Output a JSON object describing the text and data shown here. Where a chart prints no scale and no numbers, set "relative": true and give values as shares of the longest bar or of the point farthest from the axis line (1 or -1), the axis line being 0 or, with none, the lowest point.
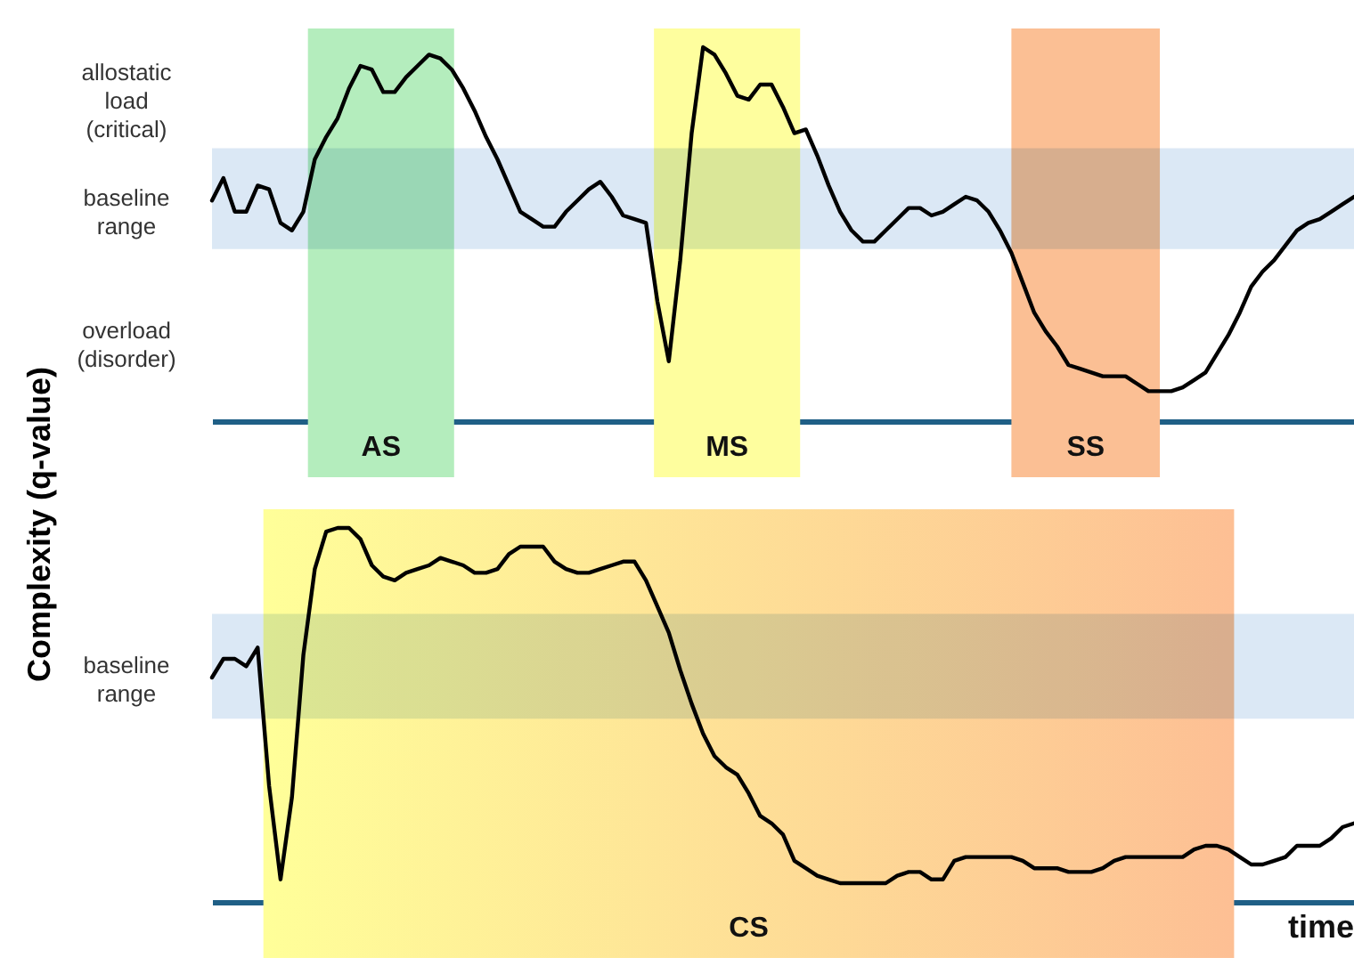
{
  "chart_data": [
    {
      "type": "line",
      "relative": true,
      "ylabel": "Complexity (q-value)",
      "categories": [
        null,
        null,
        null,
        null,
        null,
        null,
        null,
        null,
        null,
        null,
        null,
        null,
        null,
        null,
        null,
        null,
        null,
        null,
        null,
        null,
        null,
        null,
        null,
        null,
        null,
        null,
        null,
        null,
        null,
        null,
        null,
        null,
        null,
        null,
        null,
        null,
        null,
        null,
        null,
        null,
        null,
        null,
        null,
        null,
        null,
        null,
        null,
        null,
        null,
        null,
        null,
        null,
        null,
        null,
        null,
        null,
        null,
        null,
        null,
        null,
        null,
        null,
        null,
        null,
        null,
        null,
        null,
        null,
        null,
        null,
        null,
        null,
        null,
        null,
        null,
        null,
        null,
        null,
        null,
        null,
        null,
        null,
        null,
        null,
        null,
        null,
        null,
        null,
        null,
        null,
        null,
        null,
        null,
        null,
        null,
        null,
        null,
        null,
        null,
        null,
        null
      ],
      "series": [
        {
          "color": "#000000",
          "values": [
            0.59,
            0.65,
            0.56,
            0.56,
            0.63,
            0.62,
            0.53,
            0.51,
            0.56,
            0.7,
            0.76,
            0.81,
            0.89,
            0.95,
            0.94,
            0.88,
            0.88,
            0.92,
            0.95,
            0.98,
            0.97,
            0.94,
            0.89,
            0.83,
            0.76,
            0.7,
            0.63,
            0.56,
            0.54,
            0.52,
            0.52,
            0.56,
            0.59,
            0.62,
            0.64,
            0.6,
            0.55,
            0.54,
            0.53,
            0.32,
            0.16,
            0.43,
            0.77,
            1,
            0.98,
            0.93,
            0.87,
            0.86,
            0.9,
            0.9,
            0.84,
            0.77,
            0.78,
            0.71,
            0.63,
            0.56,
            0.51,
            0.48,
            0.48,
            0.51,
            0.54,
            0.57,
            0.57,
            0.55,
            0.56,
            0.58,
            0.6,
            0.59,
            0.56,
            0.51,
            0.45,
            0.37,
            0.29,
            0.24,
            0.2,
            0.15,
            0.14,
            0.13,
            0.12,
            0.12,
            0.12,
            0.1,
            0.08,
            0.08,
            0.08,
            0.09,
            0.11,
            0.13,
            0.18,
            0.23,
            0.29,
            0.36,
            0.4,
            0.43,
            0.47,
            0.51,
            0.53,
            0.54,
            0.56,
            0.58,
            0.6
          ]
        }
      ],
      "bands": [
        {
          "axis": "y",
          "from": 0.46,
          "to": 0.73,
          "label": "baseline range",
          "color": "#dbe8f5"
        }
      ],
      "annotations": [
        "allostatic load (critical)",
        "overload (disorder)",
        "AS",
        "MS",
        "SS"
      ]
    },
    {
      "type": "line",
      "relative": true,
      "xlabel": "time",
      "categories": [
        null,
        null,
        null,
        null,
        null,
        null,
        null,
        null,
        null,
        null,
        null,
        null,
        null,
        null,
        null,
        null,
        null,
        null,
        null,
        null,
        null,
        null,
        null,
        null,
        null,
        null,
        null,
        null,
        null,
        null,
        null,
        null,
        null,
        null,
        null,
        null,
        null,
        null,
        null,
        null,
        null,
        null,
        null,
        null,
        null,
        null,
        null,
        null,
        null,
        null,
        null,
        null,
        null,
        null,
        null,
        null,
        null,
        null,
        null,
        null,
        null,
        null,
        null,
        null,
        null,
        null,
        null,
        null,
        null,
        null,
        null,
        null,
        null,
        null,
        null,
        null,
        null,
        null,
        null,
        null,
        null,
        null,
        null,
        null,
        null,
        null,
        null,
        null,
        null,
        null,
        null,
        null,
        null,
        null,
        null,
        null,
        null,
        null,
        null,
        null,
        null
      ],
      "series": [
        {
          "color": "#000000",
          "values": [
            0.6,
            0.65,
            0.65,
            0.63,
            0.68,
            0.31,
            0.06,
            0.28,
            0.66,
            0.89,
            0.99,
            1,
            1,
            0.97,
            0.9,
            0.87,
            0.86,
            0.88,
            0.89,
            0.9,
            0.92,
            0.91,
            0.9,
            0.88,
            0.88,
            0.89,
            0.93,
            0.95,
            0.95,
            0.95,
            0.91,
            0.89,
            0.88,
            0.88,
            0.89,
            0.9,
            0.91,
            0.91,
            0.86,
            0.79,
            0.72,
            0.62,
            0.53,
            0.45,
            0.39,
            0.36,
            0.34,
            0.29,
            0.23,
            0.21,
            0.18,
            0.11,
            0.09,
            0.07,
            0.06,
            0.05,
            0.05,
            0.05,
            0.05,
            0.05,
            0.07,
            0.08,
            0.08,
            0.06,
            0.06,
            0.11,
            0.12,
            0.12,
            0.12,
            0.12,
            0.12,
            0.11,
            0.09,
            0.09,
            0.09,
            0.08,
            0.08,
            0.08,
            0.09,
            0.11,
            0.12,
            0.12,
            0.12,
            0.12,
            0.12,
            0.12,
            0.14,
            0.15,
            0.15,
            0.14,
            0.12,
            0.1,
            0.1,
            0.11,
            0.12,
            0.15,
            0.15,
            0.15,
            0.17,
            0.2,
            0.21
          ]
        }
      ],
      "bands": [
        {
          "axis": "y",
          "from": 0.49,
          "to": 0.77,
          "label": "baseline range",
          "color": "#dbe8f5"
        }
      ],
      "annotations": [
        "CS"
      ]
    }
  ]
}
